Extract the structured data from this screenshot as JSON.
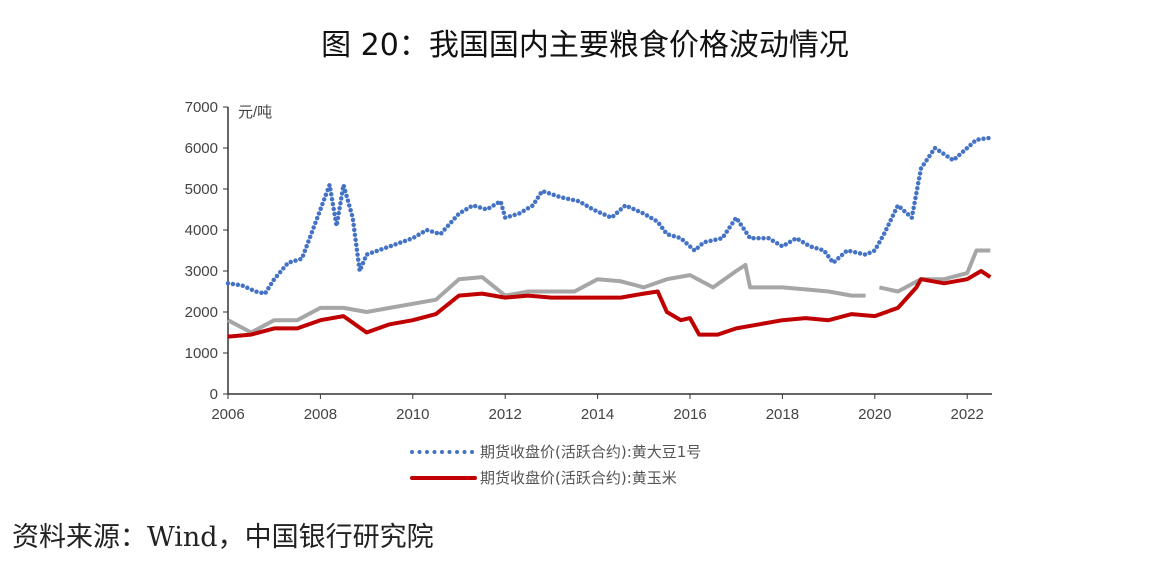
{
  "chart_data": {
    "type": "line",
    "title": "图 20：我国国内主要粮食价格波动情况",
    "ylabel": "元/吨",
    "xlabel": "",
    "xlim": [
      2006,
      2022.5
    ],
    "ylim": [
      0,
      7000
    ],
    "x_ticks": [
      "2006",
      "2008",
      "2010",
      "2012",
      "2014",
      "2016",
      "2018",
      "2020",
      "2022"
    ],
    "y_ticks": [
      "0",
      "1000",
      "2000",
      "3000",
      "4000",
      "5000",
      "6000",
      "7000"
    ],
    "legend_position": "bottom",
    "series": [
      {
        "name": "期货收盘价(活跃合约):黄大豆1号",
        "color": "#4472C4",
        "style": "dotted",
        "x": [
          2006,
          2006.3,
          2006.6,
          2006.8,
          2007,
          2007.3,
          2007.6,
          2007.8,
          2008,
          2008.2,
          2008.35,
          2008.5,
          2008.7,
          2008.85,
          2009,
          2009.5,
          2010,
          2010.3,
          2010.6,
          2011,
          2011.3,
          2011.6,
          2011.9,
          2012,
          2012.3,
          2012.6,
          2012.8,
          2013.2,
          2013.6,
          2013.9,
          2014.3,
          2014.6,
          2015,
          2015.3,
          2015.5,
          2015.8,
          2016.1,
          2016.3,
          2016.7,
          2017,
          2017.3,
          2017.7,
          2018,
          2018.3,
          2018.6,
          2018.9,
          2019.1,
          2019.4,
          2019.8,
          2020,
          2020.2,
          2020.5,
          2020.8,
          2021,
          2021.3,
          2021.7,
          2022,
          2022.2,
          2022.5
        ],
        "y": [
          2700,
          2650,
          2500,
          2450,
          2800,
          3200,
          3300,
          3900,
          4500,
          5100,
          4100,
          5100,
          4300,
          3000,
          3400,
          3600,
          3800,
          4000,
          3900,
          4400,
          4600,
          4500,
          4700,
          4300,
          4400,
          4600,
          4950,
          4800,
          4700,
          4500,
          4300,
          4600,
          4400,
          4200,
          3900,
          3800,
          3500,
          3700,
          3800,
          4300,
          3800,
          3800,
          3600,
          3800,
          3600,
          3500,
          3200,
          3500,
          3400,
          3500,
          3900,
          4600,
          4300,
          5500,
          6000,
          5700,
          6000,
          6200,
          6250
        ]
      },
      {
        "name": "期货收盘价(活跃合约):黄玉米",
        "color": "#C00000",
        "style": "solid",
        "x": [
          2006,
          2006.5,
          2007,
          2007.5,
          2008,
          2008.5,
          2009,
          2009.5,
          2010,
          2010.5,
          2011,
          2011.5,
          2012,
          2012.5,
          2013,
          2013.5,
          2014,
          2014.5,
          2015,
          2015.3,
          2015.5,
          2015.8,
          2016,
          2016.2,
          2016.6,
          2017,
          2017.5,
          2018,
          2018.5,
          2019,
          2019.5,
          2020,
          2020.5,
          2020.9,
          2021,
          2021.5,
          2022,
          2022.3,
          2022.5
        ],
        "y": [
          1400,
          1450,
          1600,
          1600,
          1800,
          1900,
          1500,
          1700,
          1800,
          1950,
          2400,
          2450,
          2350,
          2400,
          2350,
          2350,
          2350,
          2350,
          2450,
          2500,
          2000,
          1800,
          1850,
          1450,
          1450,
          1600,
          1700,
          1800,
          1850,
          1800,
          1950,
          1900,
          2100,
          2600,
          2800,
          2700,
          2800,
          3000,
          2850
        ]
      },
      {
        "name": "",
        "color": "#A6A6A6",
        "style": "solid",
        "x": [
          2006,
          2006.5,
          2007,
          2007.5,
          2008,
          2008.5,
          2009,
          2009.5,
          2010,
          2010.5,
          2011,
          2011.5,
          2012,
          2012.5,
          2013,
          2013.5,
          2014,
          2014.5,
          2015,
          2015.5,
          2016,
          2016.5,
          2017,
          2017.2,
          2017.3,
          2018,
          2018.5,
          2019,
          2019.5,
          2019.8,
          2020,
          2020.1,
          2020.5,
          2021,
          2021.5,
          2022,
          2022.2,
          2022.5
        ],
        "y": [
          1800,
          1500,
          1800,
          1800,
          2100,
          2100,
          2000,
          2100,
          2200,
          2300,
          2800,
          2850,
          2400,
          2500,
          2500,
          2500,
          2800,
          2750,
          2600,
          2800,
          2900,
          2600,
          3000,
          3150,
          2600,
          2600,
          2550,
          2500,
          2400,
          2400,
          null,
          2600,
          2500,
          2800,
          2800,
          2950,
          3500,
          3500
        ]
      }
    ]
  },
  "source": "资料来源：Wind，中国银行研究院"
}
